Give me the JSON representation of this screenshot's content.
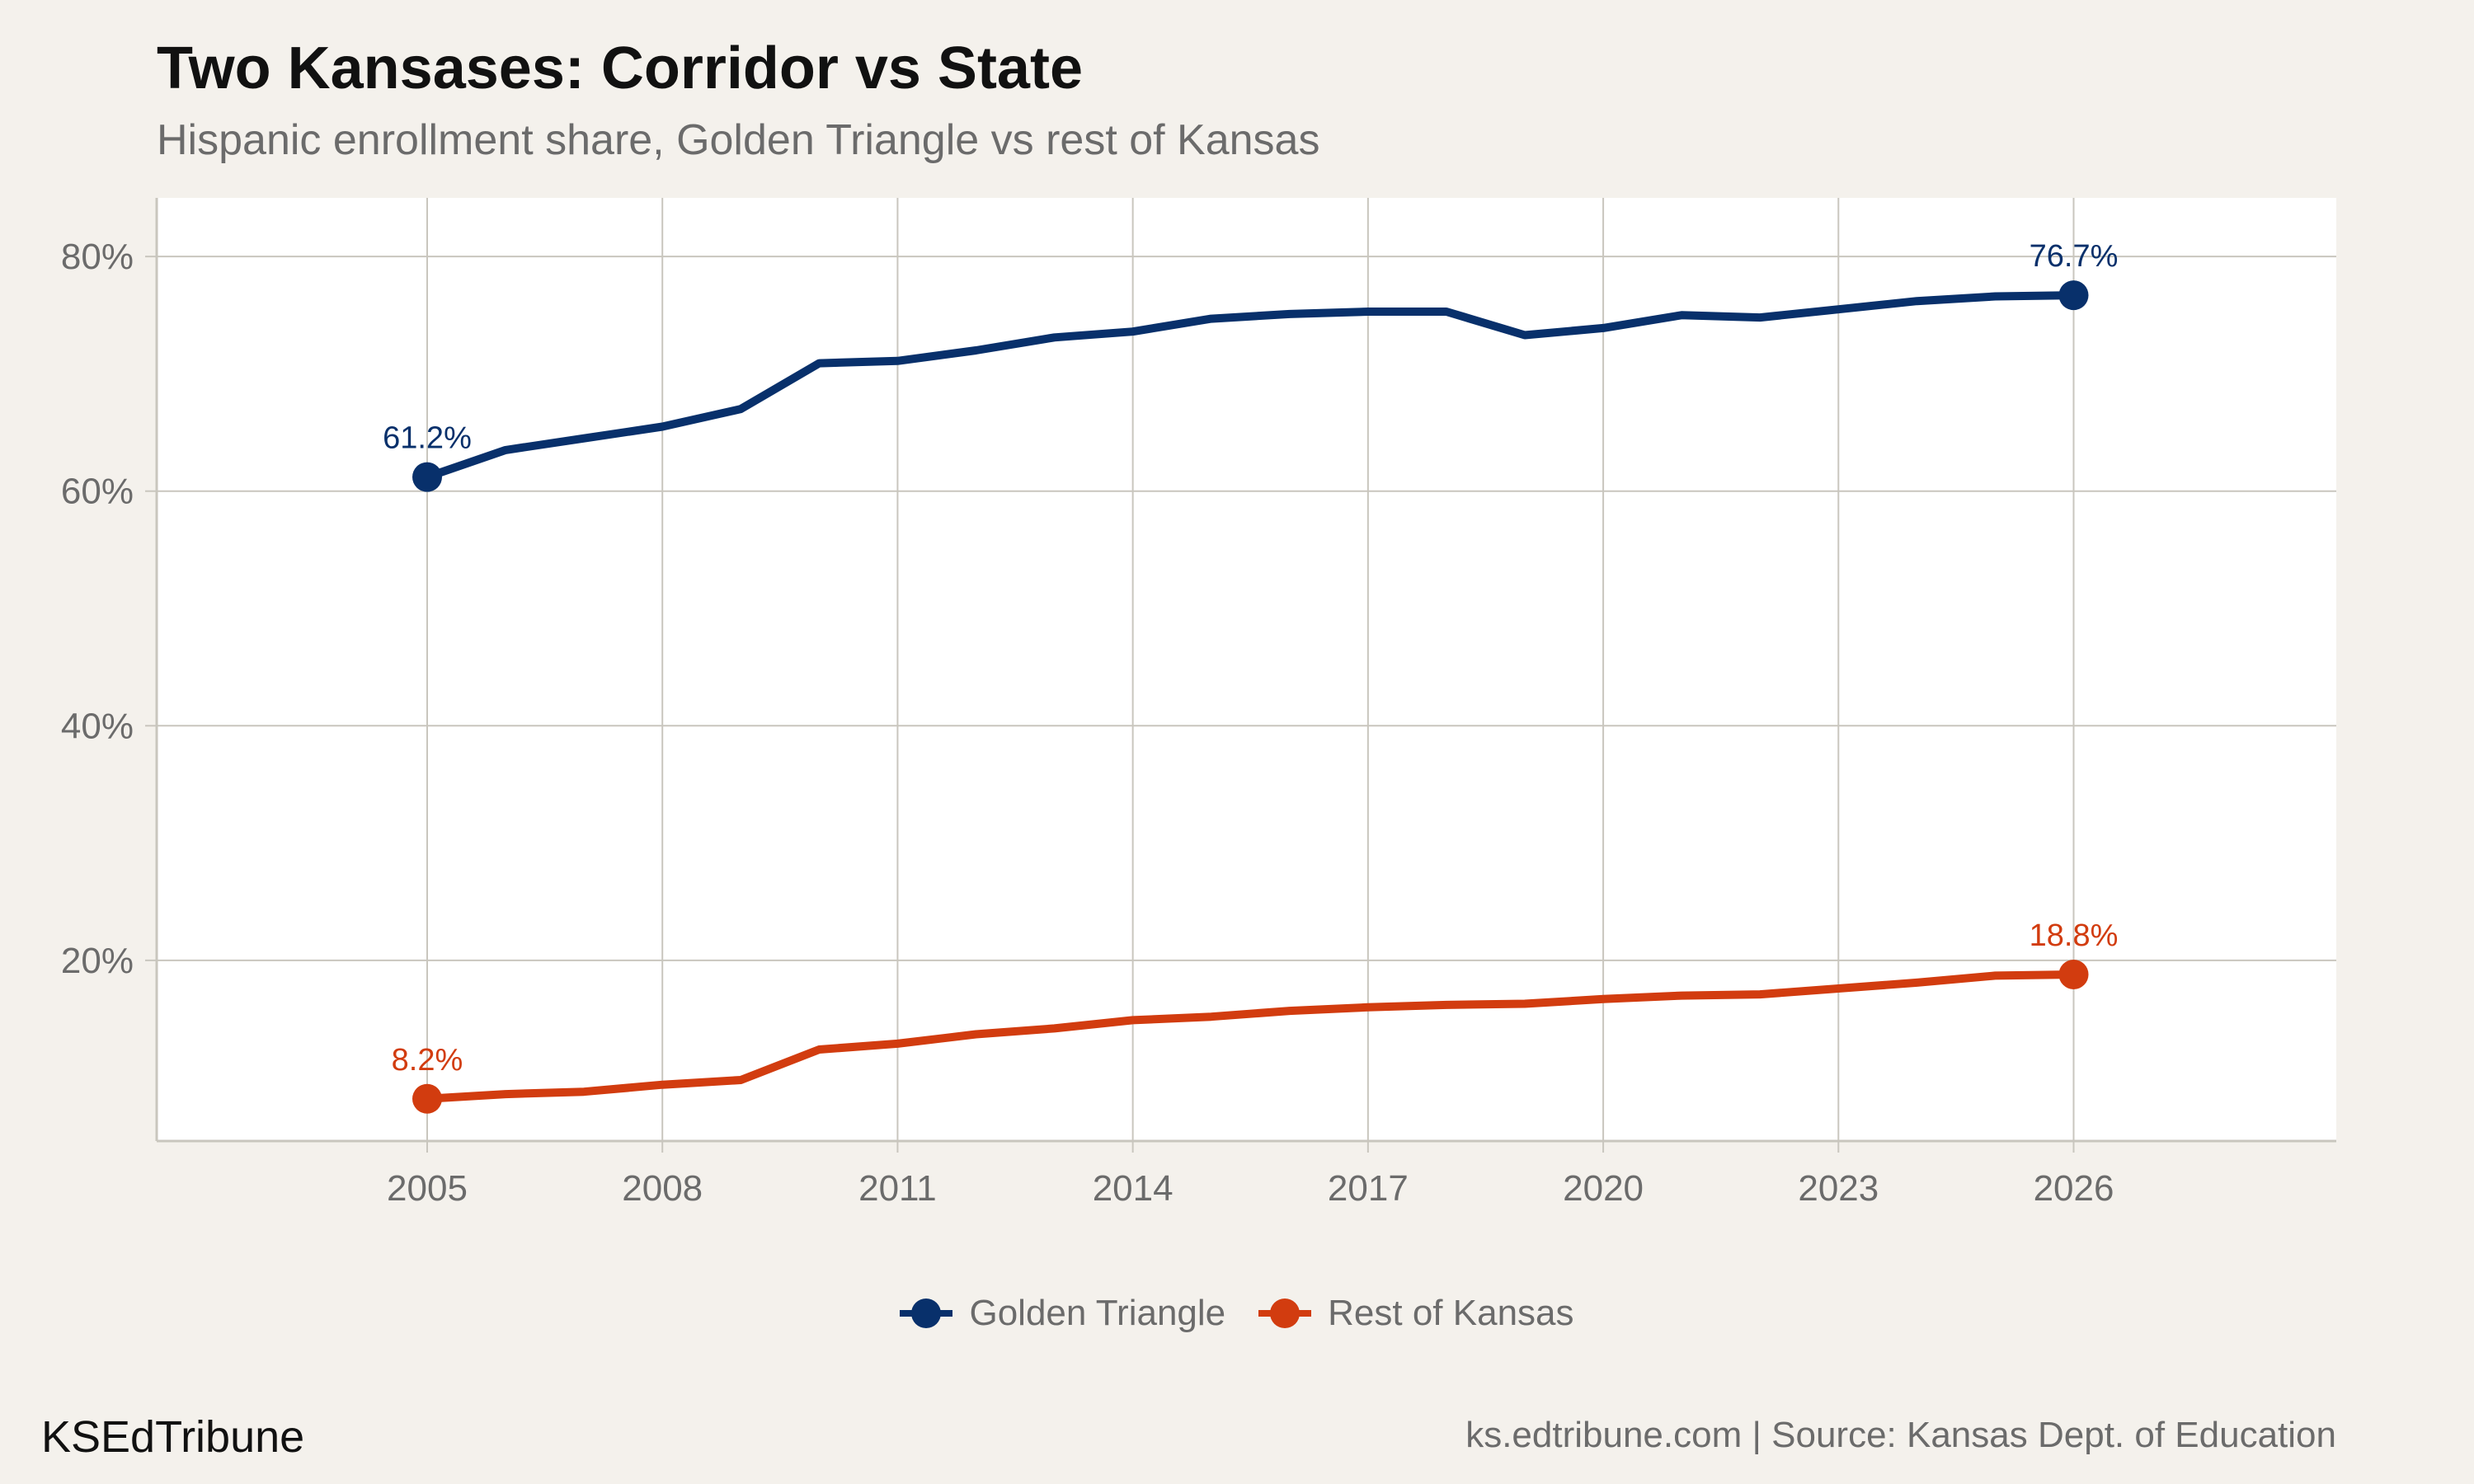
{
  "header": {
    "title": "Two Kansases: Corridor vs State",
    "subtitle": "Hispanic enrollment share, Golden Triangle vs rest of Kansas"
  },
  "footer": {
    "brand": "KSEdTribune",
    "source": "ks.edtribune.com | Source: Kansas Dept. of Education"
  },
  "colors": {
    "golden_triangle": "#08306b",
    "rest_of_kansas": "#d23c0f",
    "grid": "#c9c6be",
    "panel": "#ffffff",
    "background": "#f4f1ec"
  },
  "chart_data": {
    "type": "line",
    "title": "Two Kansases: Corridor vs State",
    "subtitle": "Hispanic enrollment share, Golden Triangle vs rest of Kansas",
    "xlabel": "",
    "ylabel": "",
    "x": [
      2005,
      2006,
      2007,
      2008,
      2009,
      2010,
      2011,
      2012,
      2013,
      2014,
      2015,
      2016,
      2017,
      2018,
      2019,
      2020,
      2021,
      2022,
      2023,
      2024,
      2025,
      2026
    ],
    "series": [
      {
        "name": "Golden Triangle",
        "color": "#08306b",
        "values": [
          61.2,
          63.5,
          64.5,
          65.5,
          67.0,
          70.9,
          71.1,
          72.0,
          73.1,
          73.6,
          74.7,
          75.1,
          75.3,
          75.3,
          73.3,
          73.9,
          75.0,
          74.8,
          75.5,
          76.2,
          76.6,
          76.7
        ],
        "labeled_points": [
          {
            "x": 2005,
            "y": 61.2,
            "label": "61.2%"
          },
          {
            "x": 2026,
            "y": 76.7,
            "label": "76.7%"
          }
        ]
      },
      {
        "name": "Rest of Kansas",
        "color": "#d23c0f",
        "values": [
          8.2,
          8.6,
          8.8,
          9.4,
          9.8,
          12.4,
          12.9,
          13.7,
          14.2,
          14.9,
          15.2,
          15.7,
          16.0,
          16.2,
          16.3,
          16.7,
          17.0,
          17.1,
          17.6,
          18.1,
          18.7,
          18.8
        ],
        "labeled_points": [
          {
            "x": 2005,
            "y": 8.2,
            "label": "8.2%"
          },
          {
            "x": 2026,
            "y": 18.8,
            "label": "18.8%"
          }
        ]
      }
    ],
    "x_ticks": [
      2005,
      2008,
      2011,
      2014,
      2017,
      2020,
      2023,
      2026
    ],
    "x_tick_labels": [
      "2005",
      "2008",
      "2011",
      "2014",
      "2017",
      "2020",
      "2023",
      "2026"
    ],
    "y_ticks": [
      20,
      40,
      60,
      80
    ],
    "y_tick_labels": [
      "20%",
      "40%",
      "60%",
      "80%"
    ],
    "xlim": [
      2001.55,
      2029.35
    ],
    "ylim": [
      4.6,
      85
    ],
    "grid": true,
    "legend_position": "bottom"
  }
}
